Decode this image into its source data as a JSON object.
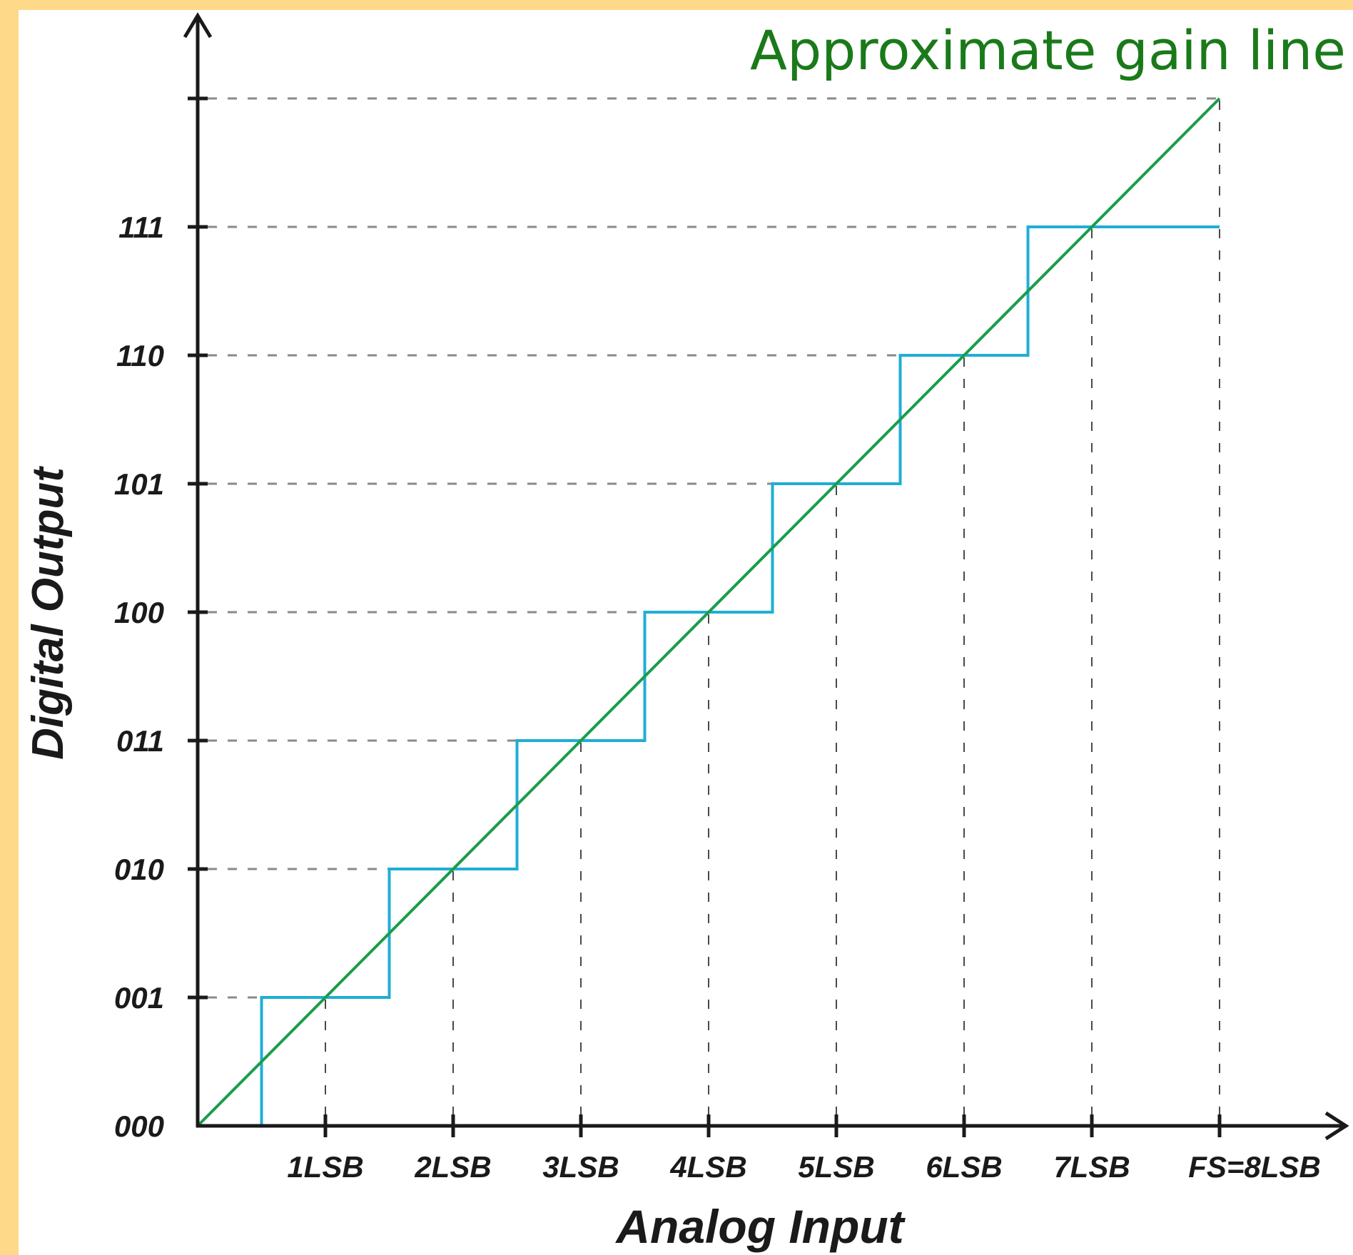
{
  "chart_data": {
    "type": "line",
    "xlabel": "Analog Input",
    "ylabel": "Digital Output",
    "x_tick_labels": [
      "1LSB",
      "2LSB",
      "3LSB",
      "4LSB",
      "5LSB",
      "6LSB",
      "7LSB",
      "FS=8LSB"
    ],
    "y_tick_labels": [
      "000",
      "001",
      "010",
      "011",
      "100",
      "101",
      "110",
      "111"
    ],
    "xlim": [
      0,
      8
    ],
    "ylim": [
      0,
      8
    ],
    "grid": "dashed",
    "series": [
      {
        "name": "",
        "kind": "step",
        "color": "#1eaed6",
        "points": [
          [
            0,
            0
          ],
          [
            0.5,
            0
          ],
          [
            0.5,
            1
          ],
          [
            1.5,
            1
          ],
          [
            1.5,
            2
          ],
          [
            2.5,
            2
          ],
          [
            2.5,
            3
          ],
          [
            3.5,
            3
          ],
          [
            3.5,
            4
          ],
          [
            4.5,
            4
          ],
          [
            4.5,
            5
          ],
          [
            5.5,
            5
          ],
          [
            5.5,
            6
          ],
          [
            6.5,
            6
          ],
          [
            6.5,
            7
          ],
          [
            8,
            7
          ]
        ]
      },
      {
        "name": "Approximate gain line",
        "kind": "line",
        "color": "#1a9c4b",
        "points": [
          [
            0,
            0
          ],
          [
            8,
            8
          ]
        ]
      }
    ],
    "annotations": [
      {
        "text": "Approximate gain line",
        "color": "#1a7a1a"
      }
    ]
  }
}
